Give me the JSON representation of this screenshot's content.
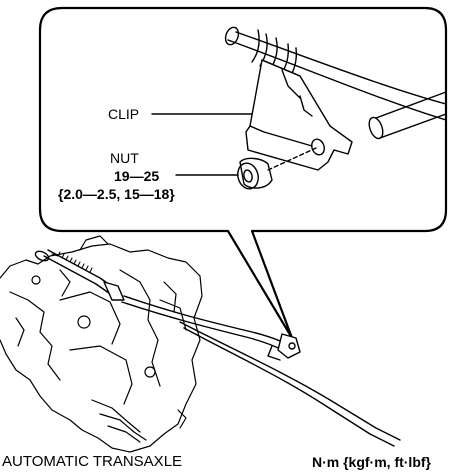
{
  "callout": {
    "clip_label": "CLIP",
    "nut_label": "NUT",
    "torque_nm": "19—25",
    "torque_other": "{2.0—2.5, 15—18}"
  },
  "footer": {
    "component_label": "AUTOMATIC TRANSAXLE",
    "units_label": "N·m {kgf·m, ft·lbf}"
  },
  "colors": {
    "line": "#000000",
    "background": "#ffffff"
  }
}
